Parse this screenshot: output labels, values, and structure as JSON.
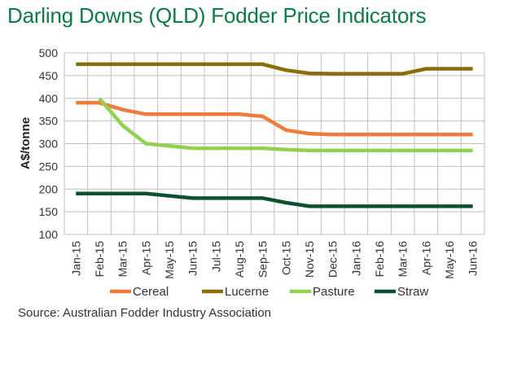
{
  "title": "Darling Downs (QLD) Fodder Price Indicators",
  "source": "Source: Australian Fodder Industry Association",
  "chart_data": {
    "type": "line",
    "title": "Darling Downs (QLD) Fodder Price Indicators",
    "ylabel": "A$/tonne",
    "xlabel": "",
    "ylim": [
      100,
      500
    ],
    "yticks": [
      100,
      150,
      200,
      250,
      300,
      350,
      400,
      450,
      500
    ],
    "grid": true,
    "legend_position": "bottom",
    "categories": [
      "Jan-15",
      "Feb-15",
      "Mar-15",
      "Apr-15",
      "May-15",
      "Jun-15",
      "Jul-15",
      "Aug-15",
      "Sep-15",
      "Oct-15",
      "Nov-15",
      "Dec-15",
      "Jan-16",
      "Feb-16",
      "Mar-16",
      "Apr-16",
      "May-16",
      "Jun-16"
    ],
    "series": [
      {
        "name": "Cereal",
        "color": "#f07c3c",
        "values": [
          390,
          390,
          375,
          365,
          365,
          365,
          365,
          365,
          360,
          330,
          322,
          320,
          320,
          320,
          320,
          320,
          320,
          320
        ]
      },
      {
        "name": "Lucerne",
        "color": "#8a6d0b",
        "values": [
          475,
          475,
          475,
          475,
          475,
          475,
          475,
          475,
          475,
          462,
          455,
          454,
          454,
          454,
          454,
          465,
          465,
          465
        ]
      },
      {
        "name": "Pasture",
        "color": "#92d050",
        "values": [
          null,
          400,
          340,
          300,
          295,
          290,
          290,
          290,
          290,
          287,
          285,
          285,
          285,
          285,
          285,
          285,
          285,
          285
        ]
      },
      {
        "name": "Straw",
        "color": "#0b5130",
        "values": [
          190,
          190,
          190,
          190,
          185,
          180,
          180,
          180,
          180,
          170,
          162,
          162,
          162,
          162,
          162,
          162,
          162,
          162
        ]
      }
    ]
  }
}
